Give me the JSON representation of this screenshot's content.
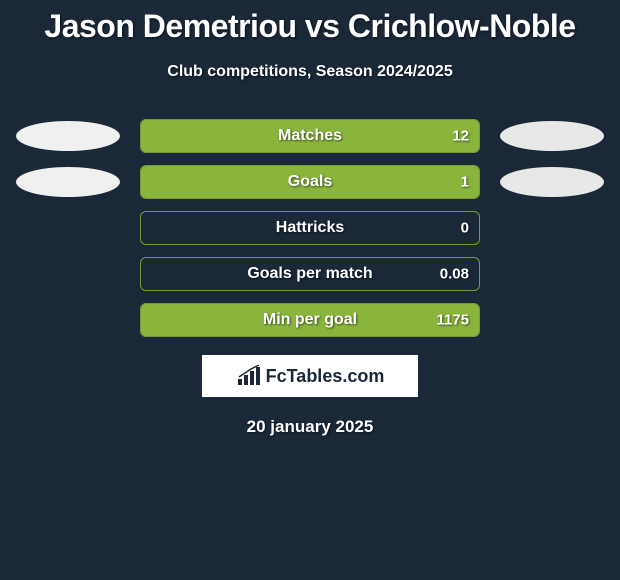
{
  "title": "Jason Demetriou vs Crichlow-Noble",
  "subtitle": "Club competitions, Season 2024/2025",
  "date": "20 january 2025",
  "logo_text": "FcTables.com",
  "colors": {
    "background": "#1a2838",
    "bar_fill": "#8ab53d",
    "bar_border": "#7a9a3a",
    "oval_left": "#f0f0f0",
    "oval_right": "#e8e8e8",
    "text": "#ffffff",
    "logo_bg": "#ffffff",
    "logo_text": "#1a2838"
  },
  "typography": {
    "title_fontsize": 32,
    "subtitle_fontsize": 16,
    "label_fontsize": 16,
    "value_fontsize": 15,
    "date_fontsize": 17
  },
  "bar_track_width": 340,
  "oval_width": 104,
  "oval_height": 30,
  "rows": [
    {
      "label": "Matches",
      "value": "12",
      "fill_side": "right",
      "fill_pct": 100,
      "show_ovals": true
    },
    {
      "label": "Goals",
      "value": "1",
      "fill_side": "right",
      "fill_pct": 100,
      "show_ovals": true
    },
    {
      "label": "Hattricks",
      "value": "0",
      "fill_side": "none",
      "fill_pct": 0,
      "show_ovals": false
    },
    {
      "label": "Goals per match",
      "value": "0.08",
      "fill_side": "none",
      "fill_pct": 0,
      "show_ovals": false
    },
    {
      "label": "Min per goal",
      "value": "1175",
      "fill_side": "right",
      "fill_pct": 100,
      "show_ovals": false
    }
  ]
}
